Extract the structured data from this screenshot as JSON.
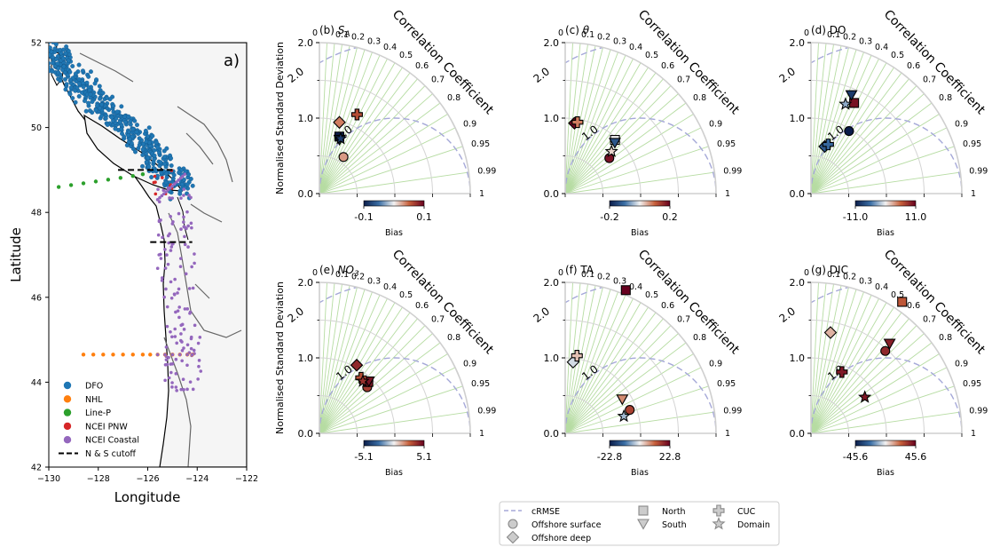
{
  "chart_data": [
    {
      "type": "map",
      "panel_label": "a)",
      "xlabel": "Longitude",
      "ylabel": "Latitude",
      "xlim": [
        -130,
        -122
      ],
      "ylim": [
        42,
        52
      ],
      "xticks": [
        "−130",
        "−128",
        "−126",
        "−124",
        "−122"
      ],
      "yticks": [
        "42",
        "44",
        "46",
        "48",
        "50",
        "52"
      ],
      "legend_placement": "lower-left",
      "legend": [
        {
          "label": "DFO",
          "color": "#1f77b4",
          "marker": "circle"
        },
        {
          "label": "NHL",
          "color": "#ff7f0e",
          "marker": "circle"
        },
        {
          "label": "Line-P",
          "color": "#2ca02c",
          "marker": "circle"
        },
        {
          "label": "NCEI PNW",
          "color": "#d62728",
          "marker": "circle"
        },
        {
          "label": "NCEI Coastal",
          "color": "#9467bd",
          "marker": "circle"
        },
        {
          "label": "N & S cutoff",
          "color": "#000000",
          "marker": "dashed-line"
        }
      ],
      "cutoff_lines": [
        {
          "lon": [
            -127.2,
            -125.0
          ],
          "lat": 49.0
        },
        {
          "lon": [
            -125.9,
            -124.2
          ],
          "lat": 47.3
        }
      ],
      "station_tracks": [
        {
          "dataset": "NHL",
          "lat": 44.65,
          "lon": [
            -128.6,
            -128.2,
            -127.8,
            -127.4,
            -127.0,
            -126.6,
            -126.2,
            -125.9,
            -125.6,
            -125.3,
            -125.0,
            -124.7,
            -124.4,
            -124.2
          ]
        },
        {
          "dataset": "Line-P",
          "lat_start": 48.6,
          "lat_end": 48.9,
          "lon": [
            -129.6,
            -129.1,
            -128.6,
            -128.1,
            -127.6,
            -127.1,
            -126.6,
            -126.2
          ]
        }
      ]
    },
    {
      "type": "taylor",
      "panel_label": "(b)",
      "variable": "S_A",
      "ylabel": "Normalised Standard Deviation",
      "colorbar_label": "Bias",
      "bias_range": [
        -0.1,
        0.1
      ],
      "bias_ticks": [
        "-0.1",
        "0.1"
      ],
      "points": [
        {
          "region": "Offshore surface",
          "marker": "circle",
          "corr": 0.55,
          "std": 0.58,
          "bias": 0.03
        },
        {
          "region": "Offshore deep",
          "marker": "diamond",
          "corr": 0.27,
          "std": 0.98,
          "bias": 0.04
        },
        {
          "region": "North",
          "marker": "square",
          "corr": 0.33,
          "std": 0.8,
          "bias": -0.1
        },
        {
          "region": "South",
          "marker": "triangle_down",
          "corr": 0.35,
          "std": 0.76,
          "bias": -0.09
        },
        {
          "region": "CUC",
          "marker": "plus",
          "corr": 0.43,
          "std": 1.16,
          "bias": 0.06
        },
        {
          "region": "Domain",
          "marker": "star",
          "corr": 0.36,
          "std": 0.78,
          "bias": -0.08
        }
      ]
    },
    {
      "type": "taylor",
      "panel_label": "(c)",
      "variable": "θ",
      "colorbar_label": "Bias",
      "bias_range": [
        -0.2,
        0.2
      ],
      "bias_ticks": [
        "-0.2",
        "0.2"
      ],
      "points": [
        {
          "region": "Offshore surface",
          "marker": "circle",
          "corr": 0.78,
          "std": 0.75,
          "bias": 0.18
        },
        {
          "region": "Offshore deep",
          "marker": "diamond",
          "corr": 0.13,
          "std": 0.94,
          "bias": 0.19
        },
        {
          "region": "North",
          "marker": "square",
          "corr": 0.68,
          "std": 0.97,
          "bias": 0.0
        },
        {
          "region": "South",
          "marker": "triangle_down",
          "corr": 0.7,
          "std": 0.94,
          "bias": -0.13
        },
        {
          "region": "CUC",
          "marker": "plus",
          "corr": 0.17,
          "std": 0.96,
          "bias": 0.08
        },
        {
          "region": "Domain",
          "marker": "star",
          "corr": 0.74,
          "std": 0.83,
          "bias": 0.02
        }
      ]
    },
    {
      "type": "taylor",
      "panel_label": "(d)",
      "variable": "DO",
      "colorbar_label": "Bias",
      "bias_range": [
        -11.0,
        11.0
      ],
      "bias_ticks": [
        "-11.0",
        "11.0"
      ],
      "points": [
        {
          "region": "Offshore surface",
          "marker": "circle",
          "corr": 0.52,
          "std": 0.97,
          "bias": -11.0
        },
        {
          "region": "Offshore deep",
          "marker": "diamond",
          "corr": 0.28,
          "std": 0.65,
          "bias": -7.0
        },
        {
          "region": "North",
          "marker": "square",
          "corr": 0.43,
          "std": 1.33,
          "bias": 10.0
        },
        {
          "region": "South",
          "marker": "triangle_down",
          "corr": 0.38,
          "std": 1.41,
          "bias": -9.0
        },
        {
          "region": "CUC",
          "marker": "plus",
          "corr": 0.33,
          "std": 0.69,
          "bias": -6.0
        },
        {
          "region": "Domain",
          "marker": "star",
          "corr": 0.36,
          "std": 1.27,
          "bias": -3.0
        }
      ]
    },
    {
      "type": "taylor",
      "panel_label": "(e)",
      "variable": "NO_3",
      "ylabel": "Normalised Standard Deviation",
      "colorbar_label": "Bias",
      "bias_range": [
        -5.1,
        5.1
      ],
      "bias_ticks": [
        "-5.1",
        "5.1"
      ],
      "points": [
        {
          "region": "Offshore surface",
          "marker": "circle",
          "corr": 0.72,
          "std": 0.88,
          "bias": 3.5
        },
        {
          "region": "Offshore deep",
          "marker": "diamond",
          "corr": 0.48,
          "std": 1.03,
          "bias": 4.0
        },
        {
          "region": "North",
          "marker": "square",
          "corr": 0.69,
          "std": 0.94,
          "bias": 4.5
        },
        {
          "region": "South",
          "marker": "triangle_down",
          "corr": 0.69,
          "std": 0.95,
          "bias": 4.6
        },
        {
          "region": "CUC",
          "marker": "plus",
          "corr": 0.6,
          "std": 0.92,
          "bias": 3.0
        },
        {
          "region": "Domain",
          "marker": "star",
          "corr": 0.64,
          "std": 0.9,
          "bias": 3.8
        }
      ]
    },
    {
      "type": "taylor",
      "panel_label": "(f)",
      "variable": "TA",
      "colorbar_label": "Bias",
      "bias_range": [
        -22.8,
        22.8
      ],
      "bias_ticks": [
        "-22.8",
        "22.8"
      ],
      "points": [
        {
          "region": "Offshore surface",
          "marker": "circle",
          "corr": 0.94,
          "std": 0.91,
          "bias": 15.0
        },
        {
          "region": "Offshore deep",
          "marker": "diamond",
          "corr": 0.11,
          "std": 0.95,
          "bias": -2.0
        },
        {
          "region": "North",
          "marker": "square",
          "corr": 0.39,
          "std": 2.06,
          "bias": 22.8
        },
        {
          "region": "South",
          "marker": "triangle_down",
          "corr": 0.86,
          "std": 0.88,
          "bias": 8.0
        },
        {
          "region": "CUC",
          "marker": "plus",
          "corr": 0.15,
          "std": 1.04,
          "bias": 4.0
        },
        {
          "region": "Domain",
          "marker": "star",
          "corr": 0.96,
          "std": 0.81,
          "bias": -5.0
        }
      ]
    },
    {
      "type": "taylor",
      "panel_label": "(g)",
      "variable": "DIC",
      "colorbar_label": "Bias",
      "bias_range": [
        -45.6,
        45.6
      ],
      "bias_ticks": [
        "-45.6",
        "45.6"
      ],
      "points": [
        {
          "region": "Offshore surface",
          "marker": "circle",
          "corr": 0.67,
          "std": 1.47,
          "bias": 36.0
        },
        {
          "region": "Offshore deep",
          "marker": "diamond",
          "corr": 0.19,
          "std": 1.36,
          "bias": 10.0
        },
        {
          "region": "North",
          "marker": "square",
          "corr": 0.57,
          "std": 2.12,
          "bias": 25.0
        },
        {
          "region": "South",
          "marker": "triangle_down",
          "corr": 0.66,
          "std": 1.58,
          "bias": 38.0
        },
        {
          "region": "CUC",
          "marker": "plus",
          "corr": 0.45,
          "std": 0.91,
          "bias": 40.0
        },
        {
          "region": "Domain",
          "marker": "star",
          "corr": 0.83,
          "std": 0.86,
          "bias": 40.0
        }
      ]
    }
  ],
  "taylor_axes": {
    "std_range": [
      0,
      2.0
    ],
    "std_ticks": [
      "0.0",
      "1.0",
      "2.0"
    ],
    "corr_ticks": [
      "0",
      "0.1",
      "0.2",
      "0.3",
      "0.4",
      "0.5",
      "0.6",
      "0.7",
      "0.8",
      "0.9",
      "0.95",
      "0.99",
      "1"
    ],
    "corr_title": "Correlation Coefficient",
    "crmse_levels": [
      "1.0",
      "2.0"
    ],
    "reference_std": 1.0
  },
  "legend": [
    {
      "label": "cRMSE",
      "marker": "dashed-line"
    },
    {
      "label": "Offshore surface",
      "marker": "circle"
    },
    {
      "label": "Offshore deep",
      "marker": "diamond"
    },
    {
      "label": "North",
      "marker": "square"
    },
    {
      "label": "South",
      "marker": "triangle_down"
    },
    {
      "label": "CUC",
      "marker": "plus"
    },
    {
      "label": "Domain",
      "marker": "star"
    }
  ],
  "colors": {
    "colormap": [
      "#0b1d4a",
      "#3a6ea5",
      "#f2f2f2",
      "#c7603b",
      "#67001f"
    ],
    "crmse": "#a5a8d8",
    "corr_grid": "#b6dca2",
    "corr_title": "#2f5a1e",
    "land": "#f5f5f5",
    "ocean": "#ffffff"
  }
}
